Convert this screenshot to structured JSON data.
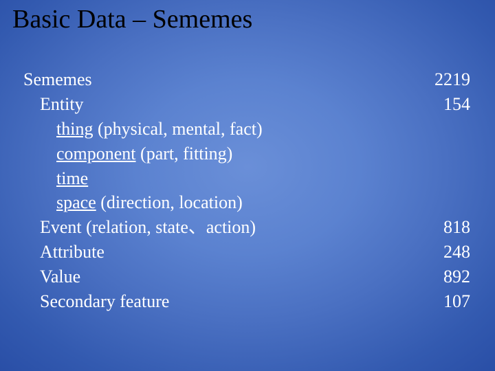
{
  "slide": {
    "title": "Basic Data – Sememes",
    "background": {
      "gradient_center": "#6a8fd8",
      "gradient_edge": "#0f2672"
    },
    "title_color": "#000000",
    "text_color": "#ffffff",
    "font_family": "Times New Roman",
    "title_fontsize": 38,
    "body_fontsize": 26,
    "rows": [
      {
        "label_plain": "Sememes",
        "value": "2219",
        "indent": 0
      },
      {
        "label_plain": "Entity",
        "value": "154",
        "indent": 1
      },
      {
        "label_underlined": "thing",
        "label_rest": " (physical, mental, fact)",
        "indent": 2
      },
      {
        "label_underlined": "component",
        "label_rest": " (part, fitting)",
        "indent": 2
      },
      {
        "label_underlined": "time",
        "indent": 2
      },
      {
        "label_underlined": "space",
        "label_rest": " (direction, location)",
        "indent": 2
      },
      {
        "label_plain": "Event (relation, state、action)",
        "value": "818",
        "indent": 1
      },
      {
        "label_plain": "Attribute",
        "value": "248",
        "indent": 1
      },
      {
        "label_plain": "Value",
        "value": "892",
        "indent": 1
      },
      {
        "label_plain": "Secondary feature",
        "value": "107",
        "indent": 1
      }
    ]
  }
}
